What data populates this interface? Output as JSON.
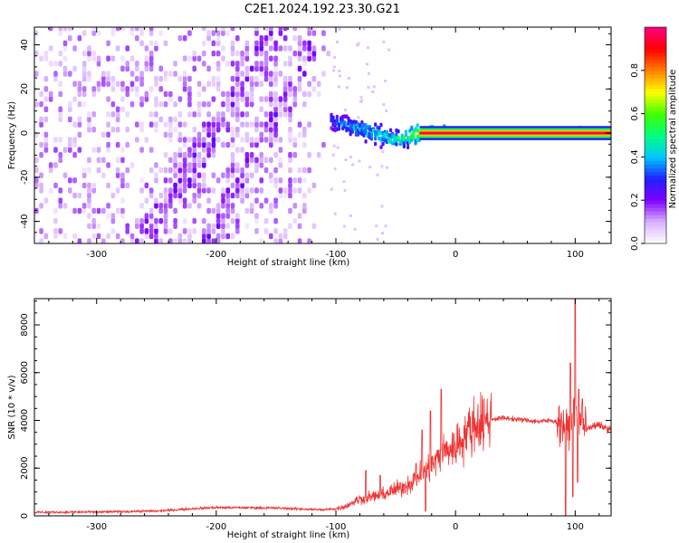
{
  "figure": {
    "title": "C2E1.2024.192.23.30.G21"
  },
  "chart_data": [
    {
      "type": "heatmap",
      "title": "",
      "xlabel": "Height of straight line (km)",
      "ylabel": "Frequency (Hz)",
      "xlim": [
        -352,
        130
      ],
      "ylim": [
        -50,
        48
      ],
      "x_ticks": [
        -300,
        -200,
        -100,
        0,
        100
      ],
      "x_tick_labels": [
        "-300",
        "-200",
        "-100",
        "0",
        "100"
      ],
      "y_ticks": [
        -40,
        -20,
        0,
        20,
        40
      ],
      "y_tick_labels": [
        "-40",
        "-20",
        "0",
        "20",
        "40"
      ],
      "grid": false,
      "colorbar": {
        "label": "Normalized spectral amplitude",
        "range": [
          0,
          1
        ],
        "ticks": [
          0,
          0.2,
          0.4,
          0.6,
          0.8
        ],
        "tick_labels": [
          "0.0",
          "0.2",
          "0.4",
          "0.6",
          "0.8"
        ],
        "colors": [
          "#ffffff",
          "#d9b3ff",
          "#8000ff",
          "#2020ff",
          "#00c8ff",
          "#00ff80",
          "#40ff00",
          "#ffff00",
          "#ff8000",
          "#ff0000",
          "#ff0080"
        ]
      },
      "features": {
        "diffuse_noise_x": [
          -352,
          -105
        ],
        "diffuse_noise_amplitude": 0.15,
        "noise_ridges": [
          {
            "x": [
              -260,
              -150
            ],
            "y": [
              -50,
              48
            ]
          },
          {
            "x": [
              -210,
              -110
            ],
            "y": [
              -50,
              48
            ]
          }
        ],
        "carrier_track": [
          {
            "x": -105,
            "y": 5,
            "amplitude": 0.35
          },
          {
            "x": -90,
            "y": 3,
            "amplitude": 0.45
          },
          {
            "x": -70,
            "y": 0,
            "amplitude": 0.5
          },
          {
            "x": -55,
            "y": -3,
            "amplitude": 0.55
          },
          {
            "x": -40,
            "y": -2,
            "amplitude": 0.6
          },
          {
            "x": -32,
            "y": 0,
            "amplitude": 0.8
          },
          {
            "x": -20,
            "y": 1,
            "amplitude": 0.9
          },
          {
            "x": 0,
            "y": 0,
            "amplitude": 0.95
          },
          {
            "x": 130,
            "y": 0,
            "amplitude": 0.95
          }
        ]
      }
    },
    {
      "type": "line",
      "title": "",
      "xlabel": "Height of straight line (km)",
      "ylabel": "SNR (10 * v/v)",
      "xlim": [
        -352,
        130
      ],
      "ylim": [
        0,
        9100
      ],
      "x_ticks": [
        -300,
        -200,
        -100,
        0,
        100
      ],
      "x_tick_labels": [
        "-300",
        "-200",
        "-100",
        "0",
        "100"
      ],
      "y_ticks": [
        0,
        2000,
        4000,
        6000,
        8000
      ],
      "y_tick_labels": [
        "0",
        "2000",
        "4000",
        "6000",
        "8000"
      ],
      "grid": false,
      "series": [
        {
          "color": "#ee3333",
          "x": [
            -352,
            -300,
            -250,
            -220,
            -200,
            -150,
            -110,
            -100,
            -95,
            -90,
            -85,
            -80,
            -70,
            -60,
            -50,
            -40,
            -35,
            -30,
            -25,
            -20,
            -15,
            -10,
            -5,
            0,
            5,
            10,
            20,
            30,
            40,
            50,
            60,
            70,
            80,
            90,
            95,
            100,
            105,
            110,
            115,
            120,
            125,
            130
          ],
          "y": [
            150,
            160,
            200,
            300,
            350,
            330,
            250,
            300,
            350,
            450,
            600,
            700,
            800,
            900,
            1100,
            1300,
            1500,
            1700,
            1900,
            2100,
            2400,
            2700,
            2800,
            2900,
            3200,
            3600,
            3900,
            4050,
            4100,
            4050,
            4000,
            3950,
            4000,
            3850,
            3700,
            4200,
            3900,
            3700,
            3750,
            3800,
            3700,
            3600
          ],
          "spikes": [
            {
              "x": -75,
              "y": 1900
            },
            {
              "x": -63,
              "y": 1700
            },
            {
              "x": -33,
              "y": 2200
            },
            {
              "x": -28,
              "y": 3600
            },
            {
              "x": -21,
              "y": 4400
            },
            {
              "x": -12,
              "y": 5300
            },
            {
              "x": 92,
              "y": 5600
            },
            {
              "x": 96,
              "y": 6400
            },
            {
              "x": 100,
              "y": 9100
            },
            {
              "x": 103,
              "y": 5300
            },
            {
              "x": 106,
              "y": 4900
            }
          ],
          "dips": [
            {
              "x": -25,
              "y": 200
            },
            {
              "x": 92,
              "y": 0
            },
            {
              "x": 98,
              "y": 800
            },
            {
              "x": 102,
              "y": 1400
            }
          ]
        }
      ]
    }
  ]
}
